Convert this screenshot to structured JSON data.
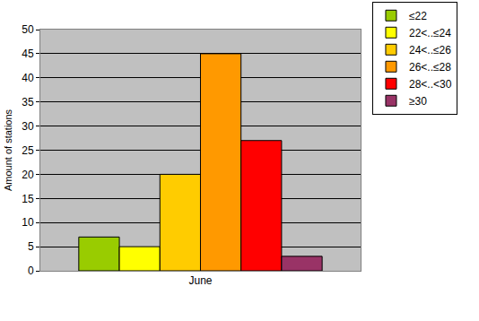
{
  "chart_data": {
    "type": "bar",
    "y_label": "Amount of stations",
    "categories": [
      "June"
    ],
    "series": [
      {
        "name": "≤22",
        "color": "#99cc00",
        "values": [
          7
        ]
      },
      {
        "name": "22<..≤24",
        "color": "#ffff00",
        "values": [
          5
        ]
      },
      {
        "name": "24<..≤26",
        "color": "#ffcc00",
        "values": [
          20
        ]
      },
      {
        "name": "26<..≤28",
        "color": "#ff9900",
        "values": [
          45
        ]
      },
      {
        "name": "28<..<30",
        "color": "#ff0000",
        "values": [
          27
        ]
      },
      {
        "name": "≥30",
        "color": "#993366",
        "values": [
          3
        ]
      }
    ],
    "ylim": [
      0,
      50
    ],
    "yticks": [
      0,
      5,
      10,
      15,
      20,
      25,
      30,
      35,
      40,
      45,
      50
    ],
    "grid": true,
    "legend": "upper-right"
  }
}
